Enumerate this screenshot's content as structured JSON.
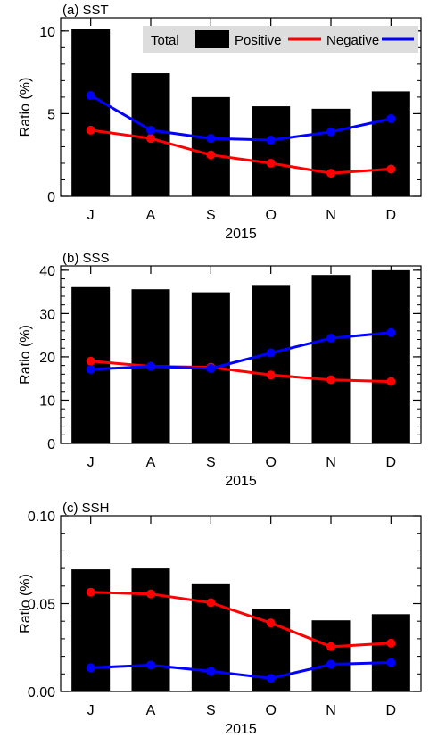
{
  "chart_data": [
    {
      "type": "bar",
      "title": "(a) SST",
      "xlabel": "2015",
      "ylabel": "Ratio (%)",
      "categories": [
        "J",
        "A",
        "S",
        "O",
        "N",
        "D"
      ],
      "ylim": [
        0,
        10.8
      ],
      "yticks": [
        0,
        5,
        10
      ],
      "ytick_labels": [
        "0",
        "5",
        "10"
      ],
      "legend": {
        "show": true,
        "placement": "top-right",
        "labels": [
          "Total",
          "Positive",
          "Negative"
        ]
      },
      "series": [
        {
          "name": "Total",
          "kind": "bar",
          "color": "#000000",
          "values": [
            10.1,
            7.45,
            6.0,
            5.45,
            5.3,
            6.35
          ]
        },
        {
          "name": "Positive",
          "kind": "line",
          "color": "#ff0000",
          "values": [
            4.0,
            3.5,
            2.5,
            2.0,
            1.4,
            1.65
          ]
        },
        {
          "name": "Negative",
          "kind": "line",
          "color": "#0000ff",
          "values": [
            6.1,
            4.0,
            3.5,
            3.4,
            3.9,
            4.7
          ]
        }
      ]
    },
    {
      "type": "bar",
      "title": "(b) SSS",
      "xlabel": "2015",
      "ylabel": "Ratio (%)",
      "categories": [
        "J",
        "A",
        "S",
        "O",
        "N",
        "D"
      ],
      "ylim": [
        0,
        41
      ],
      "yticks": [
        0,
        10,
        20,
        30,
        40
      ],
      "ytick_labels": [
        "0",
        "10",
        "20",
        "30",
        "40"
      ],
      "legend": {
        "show": false
      },
      "series": [
        {
          "name": "Total",
          "kind": "bar",
          "color": "#000000",
          "values": [
            36.1,
            35.6,
            34.9,
            36.6,
            38.9,
            40.0
          ]
        },
        {
          "name": "Positive",
          "kind": "line",
          "color": "#ff0000",
          "values": [
            19.0,
            17.8,
            17.6,
            15.8,
            14.7,
            14.3
          ]
        },
        {
          "name": "Negative",
          "kind": "line",
          "color": "#0000ff",
          "values": [
            17.1,
            17.8,
            17.3,
            20.9,
            24.3,
            25.6
          ]
        }
      ]
    },
    {
      "type": "bar",
      "title": "(c) SSH",
      "xlabel": "2015",
      "ylabel": "Ratio (%)",
      "categories": [
        "J",
        "A",
        "S",
        "O",
        "N",
        "D"
      ],
      "ylim": [
        0,
        0.1
      ],
      "yticks": [
        0,
        0.05,
        0.1
      ],
      "ytick_labels": [
        "0.00",
        "0.05",
        "0.10"
      ],
      "legend": {
        "show": false
      },
      "series": [
        {
          "name": "Total",
          "kind": "bar",
          "color": "#000000",
          "values": [
            0.0695,
            0.07,
            0.0615,
            0.047,
            0.0405,
            0.044
          ]
        },
        {
          "name": "Positive",
          "kind": "line",
          "color": "#ff0000",
          "values": [
            0.0565,
            0.0555,
            0.0505,
            0.039,
            0.0255,
            0.0275
          ]
        },
        {
          "name": "Negative",
          "kind": "line",
          "color": "#0000ff",
          "values": [
            0.0135,
            0.015,
            0.0115,
            0.0075,
            0.0155,
            0.0165
          ]
        }
      ]
    }
  ]
}
